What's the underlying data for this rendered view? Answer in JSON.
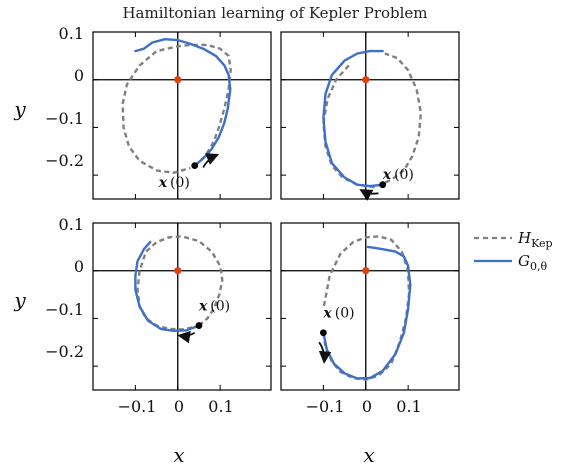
{
  "chart_data": {
    "type": "line",
    "title": "Hamiltonian learning of Kepler Problem",
    "xlabel": "x",
    "ylabel": "y",
    "xlim": [
      -0.2,
      0.22
    ],
    "ylim": [
      -0.25,
      0.1
    ],
    "x_ticks": [
      -0.1,
      0,
      0.1
    ],
    "x_tick_labels": [
      "−0.1",
      "0",
      "0.1"
    ],
    "y_ticks": [
      0.1,
      0,
      -0.1,
      -0.2
    ],
    "y_tick_labels": [
      "0.1",
      "0",
      "−0.1",
      "−0.2"
    ],
    "grid": false,
    "legend": {
      "placement": "right",
      "entries": [
        {
          "main": "H",
          "sub": "Kep",
          "style": "dashed",
          "color": "#808080"
        },
        {
          "main": "G",
          "sub": "0,θ",
          "style": "solid",
          "color": "#3e6fc9"
        }
      ]
    },
    "origin_marker_color": "#e04010",
    "start_label": "x",
    "start_label_suffix": "(0)",
    "panels": [
      {
        "series": [
          {
            "name": "H_Kep",
            "style": "dashed",
            "x": [
              0.04,
              0.065,
              0.085,
              0.097,
              0.11,
              0.12,
              0.125,
              0.12,
              0.1,
              0.07,
              0.03,
              0.0,
              -0.05,
              -0.09,
              -0.12,
              -0.13,
              -0.128,
              -0.115,
              -0.09,
              -0.05,
              -0.01,
              0.03
            ],
            "y": [
              -0.18,
              -0.16,
              -0.13,
              -0.1,
              -0.06,
              -0.02,
              0.02,
              0.05,
              0.065,
              0.073,
              0.073,
              0.07,
              0.06,
              0.03,
              -0.01,
              -0.05,
              -0.1,
              -0.14,
              -0.17,
              -0.19,
              -0.195,
              -0.185
            ]
          },
          {
            "name": "G_0,theta",
            "style": "solid",
            "x": [
              0.04,
              0.06,
              0.08,
              0.097,
              0.11,
              0.118,
              0.124,
              0.12,
              0.11,
              0.09,
              0.06,
              0.03,
              0.0,
              -0.03,
              -0.06,
              -0.08,
              -0.1
            ],
            "y": [
              -0.18,
              -0.165,
              -0.145,
              -0.12,
              -0.09,
              -0.06,
              -0.02,
              0.01,
              0.03,
              0.05,
              0.065,
              0.075,
              0.083,
              0.085,
              0.078,
              0.065,
              0.06
            ]
          }
        ],
        "start_point": {
          "x": 0.04,
          "y": -0.18
        },
        "arrow_from": [
          0.06,
          -0.184
        ],
        "arrow_to": [
          0.092,
          -0.158
        ],
        "label_at": {
          "x": -0.045,
          "y": -0.225
        }
      },
      {
        "series": [
          {
            "name": "H_Kep",
            "style": "dashed",
            "x": [
              -0.04,
              -0.07,
              -0.09,
              -0.1,
              -0.095,
              -0.08,
              -0.055,
              -0.02,
              0.02,
              0.06,
              0.09,
              0.11,
              0.125,
              0.13,
              0.12,
              0.1,
              0.075,
              0.045
            ],
            "y": [
              0.03,
              0.0,
              -0.04,
              -0.09,
              -0.14,
              -0.18,
              -0.205,
              -0.22,
              -0.225,
              -0.21,
              -0.19,
              -0.16,
              -0.12,
              -0.07,
              -0.02,
              0.02,
              0.045,
              0.055
            ]
          },
          {
            "name": "G_0,theta",
            "style": "solid",
            "x": [
              0.04,
              0.01,
              -0.02,
              -0.05,
              -0.08,
              -0.095,
              -0.1,
              -0.095,
              -0.08,
              -0.05,
              -0.02,
              0.01,
              0.04
            ],
            "y": [
              -0.22,
              -0.223,
              -0.22,
              -0.205,
              -0.175,
              -0.13,
              -0.08,
              -0.03,
              0.01,
              0.04,
              0.055,
              0.06,
              0.06
            ]
          }
        ],
        "start_point": {
          "x": 0.04,
          "y": -0.22
        },
        "arrow_from": [
          0.03,
          -0.238
        ],
        "arrow_to": [
          -0.01,
          -0.232
        ],
        "label_at": {
          "x": 0.04,
          "y": -0.208
        }
      },
      {
        "series": [
          {
            "name": "H_Kep",
            "style": "dashed",
            "x": [
              0.05,
              0.07,
              0.085,
              0.098,
              0.105,
              0.1,
              0.08,
              0.05,
              0.01,
              -0.02,
              -0.05,
              -0.075,
              -0.09,
              -0.095,
              -0.09,
              -0.075,
              -0.05,
              -0.02,
              0.01,
              0.04
            ],
            "y": [
              -0.115,
              -0.1,
              -0.08,
              -0.05,
              -0.02,
              0.01,
              0.04,
              0.062,
              0.072,
              0.07,
              0.06,
              0.04,
              0.0,
              -0.04,
              -0.075,
              -0.1,
              -0.115,
              -0.122,
              -0.123,
              -0.118
            ]
          },
          {
            "name": "G_0,theta",
            "style": "solid",
            "x": [
              0.05,
              0.02,
              -0.01,
              -0.04,
              -0.07,
              -0.09,
              -0.1,
              -0.1,
              -0.095,
              -0.08,
              -0.065
            ],
            "y": [
              -0.115,
              -0.125,
              -0.126,
              -0.122,
              -0.105,
              -0.075,
              -0.04,
              -0.01,
              0.02,
              0.045,
              0.06
            ]
          }
        ],
        "start_point": {
          "x": 0.05,
          "y": -0.115
        },
        "arrow_from": [
          0.04,
          -0.13
        ],
        "arrow_to": [
          0.005,
          -0.136
        ],
        "label_at": {
          "x": 0.05,
          "y": -0.083
        }
      },
      {
        "series": [
          {
            "name": "H_Kep",
            "style": "dashed",
            "x": [
              -0.1,
              -0.095,
              -0.08,
              -0.06,
              -0.03,
              0.0,
              0.03,
              0.06,
              0.08,
              0.095,
              0.102,
              0.1,
              0.085,
              0.06,
              0.03,
              0.0,
              -0.03,
              -0.06,
              -0.085,
              -0.1
            ],
            "y": [
              -0.13,
              -0.16,
              -0.19,
              -0.212,
              -0.225,
              -0.228,
              -0.22,
              -0.195,
              -0.15,
              -0.1,
              -0.05,
              0.0,
              0.04,
              0.065,
              0.072,
              0.07,
              0.06,
              0.035,
              -0.01,
              -0.08
            ]
          },
          {
            "name": "G_0,theta",
            "style": "solid",
            "x": [
              -0.1,
              -0.092,
              -0.075,
              -0.05,
              -0.02,
              0.01,
              0.04,
              0.07,
              0.09,
              0.1,
              0.105,
              0.1,
              0.09,
              0.07,
              0.04,
              0.02,
              0.005
            ],
            "y": [
              -0.13,
              -0.165,
              -0.195,
              -0.215,
              -0.226,
              -0.225,
              -0.21,
              -0.175,
              -0.13,
              -0.08,
              -0.03,
              0.01,
              0.03,
              0.04,
              0.045,
              0.048,
              0.05
            ]
          }
        ],
        "start_point": {
          "x": -0.1,
          "y": -0.13
        },
        "arrow_from": [
          -0.11,
          -0.15
        ],
        "arrow_to": [
          -0.098,
          -0.19
        ],
        "label_at": {
          "x": -0.1,
          "y": -0.098
        }
      }
    ]
  }
}
